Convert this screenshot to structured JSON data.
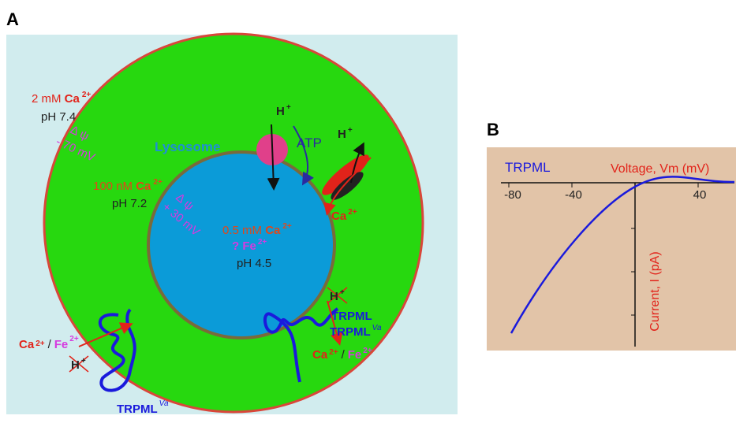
{
  "panel_a": {
    "label": "A",
    "extracellular": {
      "ca_amount": "2 mM",
      "ca": "Ca",
      "ca_charge": "2+",
      "ph": "pH 7.4",
      "delta_psi": "Δ ψ",
      "potential": "- 70 mV"
    },
    "cytosol": {
      "ca_amount": "100 nM",
      "ca": "Ca",
      "ca_charge": "2+",
      "ph": "pH 7.2",
      "delta_psi": "Δ ψ",
      "potential": "+ 30 mV"
    },
    "lysosome": {
      "name": "Lysosome",
      "ca_amount": "0.5 mM",
      "ca": "Ca",
      "ca_charge": "2+",
      "fe_prefix": "?",
      "fe": "Fe",
      "fe_charge": "2+",
      "ph": "pH 4.5"
    },
    "pump": {
      "proton": "H",
      "proton_charge": "+",
      "atp": "ATP"
    },
    "exchanger": {
      "proton": "H",
      "proton_charge": "+",
      "ca": "Ca",
      "ca_charge": "2+"
    },
    "lysosome_channel": {
      "proton": "H",
      "proton_charge": "+",
      "name": "TRPML",
      "variant_name": "TRPML",
      "variant": "Va",
      "ca": "Ca",
      "ca_charge": "2+",
      "separator": "/",
      "fe": "Fe",
      "fe_charge": "2+"
    },
    "plasma_channel": {
      "ca": "Ca",
      "ca_charge": "2+",
      "separator": "/",
      "fe": "Fe",
      "fe_charge": "2+",
      "proton": "H",
      "proton_charge": "+",
      "name": "TRPML",
      "variant": "Va"
    }
  },
  "panel_b": {
    "label": "B",
    "trace": "TRPML",
    "x_axis": "Voltage, Vm (mV)",
    "y_axis": "Current, I (pA)",
    "ticks": [
      "-80",
      "-40",
      "40"
    ]
  }
}
